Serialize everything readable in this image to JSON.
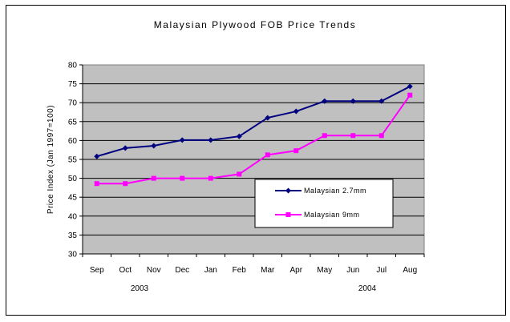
{
  "chart_data": {
    "type": "line",
    "title": "Malaysian Plywood FOB Price Trends",
    "ylabel": "Price Index (Jan 1997=100)",
    "xlabel": "",
    "categories": [
      "Sep",
      "Oct",
      "Nov",
      "Dec",
      "Jan",
      "Feb",
      "Mar",
      "Apr",
      "May",
      "Jun",
      "Jul",
      "Aug"
    ],
    "year_labels": [
      {
        "label": "2003",
        "category_index": 1.5
      },
      {
        "label": "2004",
        "category_index": 9.5
      }
    ],
    "ylim": [
      30,
      80
    ],
    "yticks": [
      30,
      35,
      40,
      45,
      50,
      55,
      60,
      65,
      70,
      75,
      80
    ],
    "grid": true,
    "legend_position": "center-right",
    "series": [
      {
        "name": "Malaysian 2.7mm",
        "color": "#000080",
        "marker": "diamond",
        "values": [
          55.8,
          58.0,
          58.6,
          60.1,
          60.1,
          61.1,
          66.0,
          67.7,
          70.4,
          70.4,
          70.4,
          74.3
        ]
      },
      {
        "name": "Malaysian 9mm",
        "color": "#FF00FF",
        "marker": "square",
        "values": [
          48.6,
          48.6,
          50.0,
          50.0,
          50.0,
          51.1,
          56.2,
          57.3,
          61.3,
          61.3,
          61.3,
          72.0
        ]
      }
    ],
    "colors": {
      "plot_background": "#C0C0C0",
      "gridline": "#000000"
    }
  }
}
